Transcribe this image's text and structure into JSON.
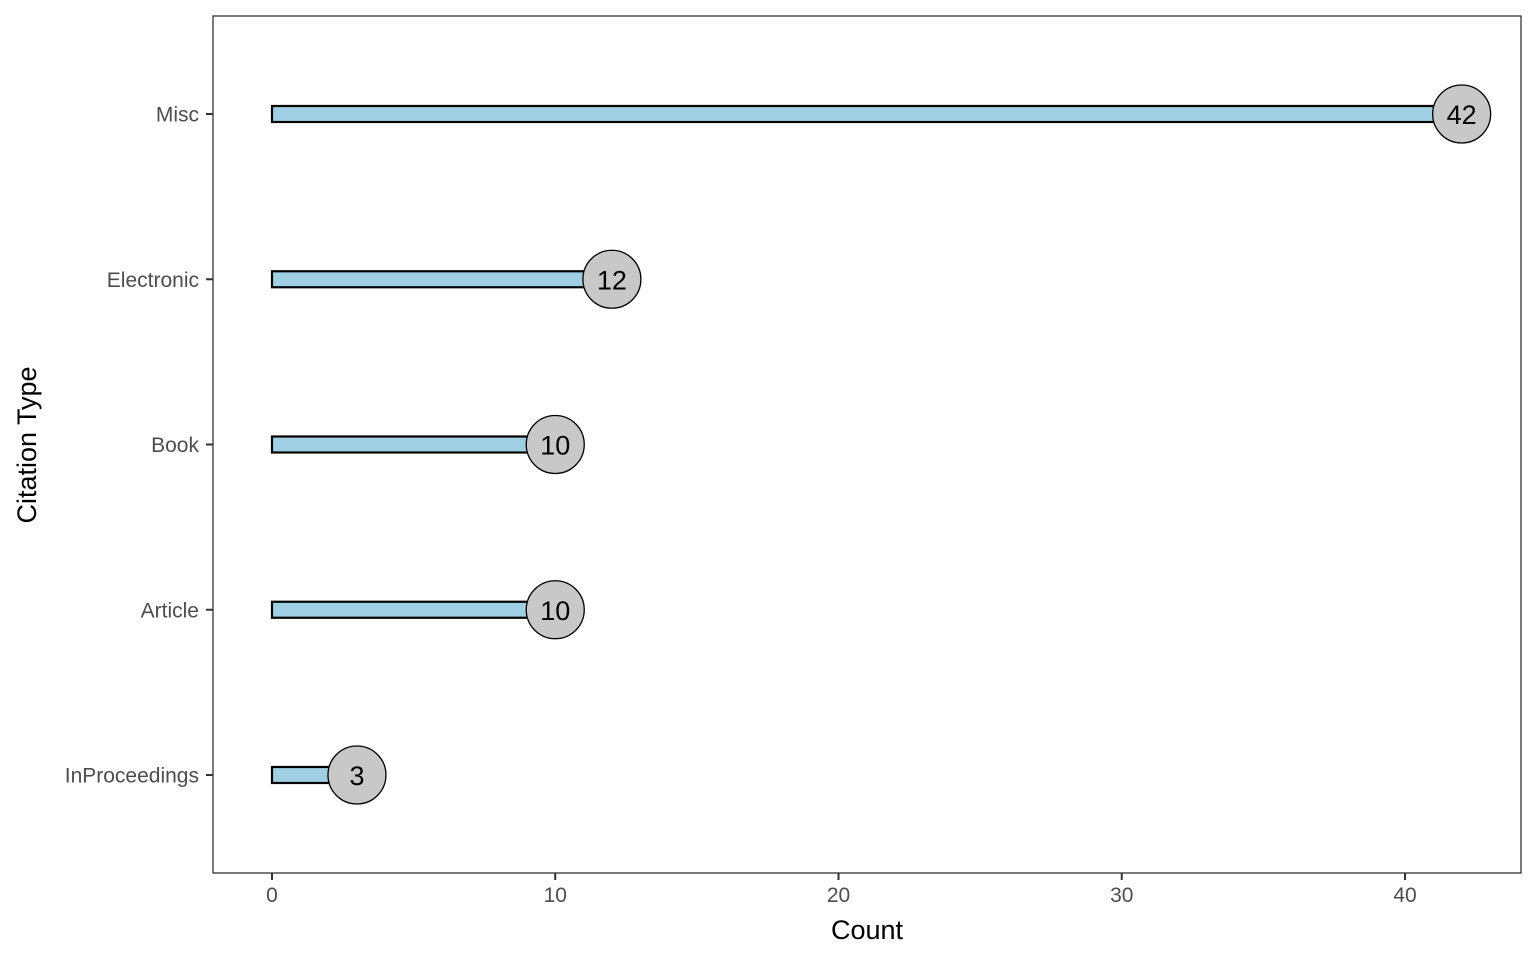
{
  "chart_data": {
    "type": "bar",
    "orientation": "horizontal",
    "style": "lollipop",
    "categories": [
      "Misc",
      "Electronic",
      "Book",
      "Article",
      "InProceedings"
    ],
    "values": [
      42,
      12,
      10,
      10,
      3
    ],
    "xlabel": "Count",
    "ylabel": "Citation Type",
    "xlim": [
      -2.1,
      44.1
    ],
    "xticks": [
      0,
      10,
      20,
      30,
      40
    ],
    "grid": false,
    "legend": "none",
    "colors": {
      "bar_fill": "#9ecfe2",
      "bar_stroke": "#000000",
      "point_fill": "#c8c8c8",
      "point_stroke": "#000000",
      "panel_border": "#333333",
      "tick_text": "#4d4d4d"
    }
  }
}
